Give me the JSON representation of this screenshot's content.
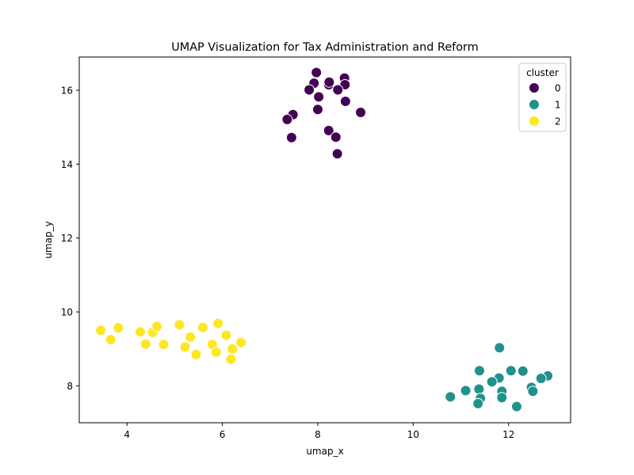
{
  "chart_data": {
    "type": "scatter",
    "title": "UMAP Visualization for Tax Administration and Reform",
    "xlabel": "umap_x",
    "ylabel": "umap_y",
    "xlim": [
      3.0,
      13.3
    ],
    "ylim": [
      7.0,
      16.9
    ],
    "xticks": [
      4,
      6,
      8,
      10,
      12
    ],
    "yticks": [
      8,
      10,
      12,
      14,
      16
    ],
    "grid": false,
    "legend": {
      "title": "cluster",
      "placement": "top-right"
    },
    "series": [
      {
        "name": "0",
        "color": "#440154",
        "points": [
          [
            7.97,
            16.48
          ],
          [
            8.56,
            16.33
          ],
          [
            7.92,
            16.19
          ],
          [
            8.23,
            16.15
          ],
          [
            8.24,
            16.22
          ],
          [
            8.57,
            16.15
          ],
          [
            7.82,
            16.01
          ],
          [
            8.42,
            16.01
          ],
          [
            8.02,
            15.82
          ],
          [
            8.58,
            15.7
          ],
          [
            8.0,
            15.48
          ],
          [
            8.9,
            15.4
          ],
          [
            7.48,
            15.34
          ],
          [
            7.36,
            15.21
          ],
          [
            8.23,
            14.91
          ],
          [
            7.45,
            14.72
          ],
          [
            8.38,
            14.73
          ],
          [
            8.41,
            14.28
          ]
        ]
      },
      {
        "name": "1",
        "color": "#21918c",
        "points": [
          [
            11.81,
            9.03
          ],
          [
            11.39,
            8.41
          ],
          [
            12.05,
            8.41
          ],
          [
            12.3,
            8.4
          ],
          [
            12.82,
            8.27
          ],
          [
            12.68,
            8.2
          ],
          [
            11.8,
            8.21
          ],
          [
            11.65,
            8.11
          ],
          [
            12.48,
            7.96
          ],
          [
            11.38,
            7.91
          ],
          [
            11.1,
            7.87
          ],
          [
            11.86,
            7.85
          ],
          [
            12.51,
            7.85
          ],
          [
            11.41,
            7.66
          ],
          [
            10.78,
            7.7
          ],
          [
            11.86,
            7.68
          ],
          [
            11.36,
            7.52
          ],
          [
            12.17,
            7.44
          ]
        ]
      },
      {
        "name": "2",
        "color": "#fde725",
        "points": [
          [
            3.45,
            9.5
          ],
          [
            3.82,
            9.57
          ],
          [
            3.66,
            9.25
          ],
          [
            4.28,
            9.46
          ],
          [
            4.54,
            9.45
          ],
          [
            4.63,
            9.61
          ],
          [
            4.39,
            9.13
          ],
          [
            4.77,
            9.12
          ],
          [
            5.1,
            9.65
          ],
          [
            5.59,
            9.58
          ],
          [
            5.91,
            9.69
          ],
          [
            6.08,
            9.37
          ],
          [
            5.33,
            9.32
          ],
          [
            5.22,
            9.05
          ],
          [
            5.79,
            9.12
          ],
          [
            6.39,
            9.17
          ],
          [
            6.21,
            9.0
          ],
          [
            5.45,
            8.85
          ],
          [
            5.87,
            8.91
          ],
          [
            6.18,
            8.72
          ]
        ]
      }
    ]
  }
}
